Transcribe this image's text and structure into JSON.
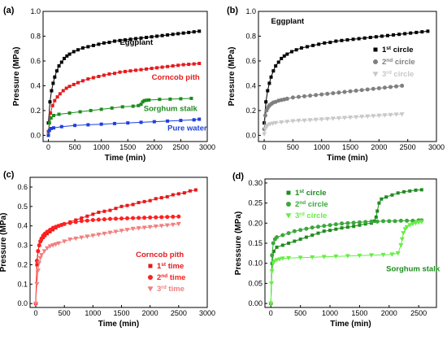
{
  "chart_data": [
    {
      "panel": "(a)",
      "type": "line",
      "xlabel": "Time (min)",
      "ylabel": "Pressure (MPa)",
      "xlim": [
        -100,
        3000
      ],
      "ylim": [
        -0.05,
        1.0
      ],
      "xticks": [
        0,
        500,
        1000,
        1500,
        2000,
        2500,
        3000
      ],
      "yticks": [
        0.0,
        0.2,
        0.4,
        0.6,
        0.8,
        1.0
      ],
      "grid": false,
      "legend": "none",
      "annotations": [
        {
          "text": "Eggplant",
          "x": 1350,
          "y": 0.73,
          "color": "#000000"
        },
        {
          "text": "Corncob pith",
          "x": 1950,
          "y": 0.45,
          "color": "#e41a1c"
        },
        {
          "text": "Sorghum stalk",
          "x": 1800,
          "y": 0.195,
          "color": "#1e8c1e"
        },
        {
          "text": "Pure water",
          "x": 2250,
          "y": 0.04,
          "color": "#1f3fe0"
        }
      ],
      "series": [
        {
          "name": "Eggplant",
          "color": "#000000",
          "marker": "square",
          "x": [
            0,
            30,
            60,
            90,
            120,
            160,
            200,
            250,
            300,
            350,
            400,
            480,
            560,
            650,
            750,
            850,
            950,
            1050,
            1150,
            1250,
            1350,
            1450,
            1550,
            1650,
            1750,
            1850,
            1950,
            2050,
            2150,
            2250,
            2350,
            2450,
            2550,
            2650,
            2750,
            2850
          ],
          "y": [
            0.1,
            0.27,
            0.36,
            0.42,
            0.47,
            0.52,
            0.56,
            0.59,
            0.62,
            0.64,
            0.655,
            0.675,
            0.69,
            0.705,
            0.715,
            0.725,
            0.735,
            0.745,
            0.75,
            0.76,
            0.765,
            0.77,
            0.775,
            0.78,
            0.785,
            0.79,
            0.795,
            0.8,
            0.805,
            0.81,
            0.815,
            0.82,
            0.825,
            0.83,
            0.835,
            0.84
          ]
        },
        {
          "name": "Corncob pith",
          "color": "#e41a1c",
          "marker": "square",
          "x": [
            0,
            40,
            80,
            120,
            170,
            220,
            280,
            340,
            400,
            480,
            560,
            650,
            750,
            850,
            950,
            1050,
            1150,
            1250,
            1350,
            1450,
            1550,
            1650,
            1750,
            1850,
            1950,
            2050,
            2150,
            2250,
            2350,
            2450,
            2550,
            2650,
            2750,
            2850
          ],
          "y": [
            0.03,
            0.18,
            0.24,
            0.28,
            0.31,
            0.335,
            0.36,
            0.38,
            0.395,
            0.41,
            0.425,
            0.44,
            0.455,
            0.465,
            0.475,
            0.485,
            0.495,
            0.5,
            0.51,
            0.515,
            0.52,
            0.525,
            0.53,
            0.535,
            0.54,
            0.545,
            0.55,
            0.555,
            0.56,
            0.565,
            0.57,
            0.573,
            0.576,
            0.58
          ]
        },
        {
          "name": "Sorghum stalk",
          "color": "#1e8c1e",
          "marker": "square",
          "x": [
            0,
            20,
            50,
            100,
            200,
            400,
            600,
            800,
            1000,
            1200,
            1400,
            1600,
            1700,
            1750,
            1780,
            1810,
            1850,
            1900,
            2100,
            2300,
            2500,
            2700
          ],
          "y": [
            0.0,
            0.1,
            0.14,
            0.16,
            0.17,
            0.18,
            0.19,
            0.2,
            0.21,
            0.22,
            0.23,
            0.235,
            0.24,
            0.25,
            0.27,
            0.28,
            0.283,
            0.285,
            0.29,
            0.292,
            0.295,
            0.298
          ]
        },
        {
          "name": "Pure water",
          "color": "#1f3fe0",
          "marker": "square",
          "x": [
            0,
            20,
            50,
            100,
            250,
            500,
            750,
            1000,
            1250,
            1500,
            1750,
            2000,
            2250,
            2500,
            2750,
            2850
          ],
          "y": [
            0.0,
            0.04,
            0.055,
            0.06,
            0.07,
            0.08,
            0.085,
            0.09,
            0.095,
            0.1,
            0.105,
            0.11,
            0.115,
            0.12,
            0.125,
            0.13
          ]
        }
      ]
    },
    {
      "panel": "(b)",
      "type": "line",
      "xlabel": "Time (min)",
      "ylabel": "Pressure (MPa)",
      "xlim": [
        -100,
        3000
      ],
      "ylim": [
        -0.05,
        1.0
      ],
      "xticks": [
        0,
        500,
        1000,
        1500,
        2000,
        2500,
        3000
      ],
      "yticks": [
        0.0,
        0.2,
        0.4,
        0.6,
        0.8,
        1.0
      ],
      "grid": false,
      "legend": "right",
      "annotations": [
        {
          "text": "Eggplant",
          "x": 120,
          "y": 0.9,
          "color": "#000000"
        }
      ],
      "series": [
        {
          "name": "1st circle",
          "color": "#000000",
          "marker": "square",
          "x": [
            0,
            30,
            60,
            90,
            120,
            160,
            200,
            250,
            300,
            350,
            400,
            480,
            560,
            650,
            750,
            850,
            950,
            1050,
            1150,
            1250,
            1350,
            1450,
            1550,
            1650,
            1750,
            1850,
            1950,
            2050,
            2150,
            2250,
            2350,
            2450,
            2550,
            2650,
            2750,
            2850
          ],
          "y": [
            0.1,
            0.27,
            0.36,
            0.42,
            0.47,
            0.52,
            0.56,
            0.59,
            0.62,
            0.64,
            0.655,
            0.675,
            0.69,
            0.705,
            0.715,
            0.725,
            0.735,
            0.745,
            0.75,
            0.76,
            0.765,
            0.77,
            0.775,
            0.78,
            0.785,
            0.79,
            0.795,
            0.8,
            0.805,
            0.81,
            0.815,
            0.82,
            0.825,
            0.83,
            0.835,
            0.84
          ]
        },
        {
          "name": "2nd circle",
          "color": "#808080",
          "marker": "circle",
          "x": [
            0,
            20,
            40,
            60,
            80,
            100,
            130,
            160,
            200,
            250,
            300,
            350,
            400,
            500,
            600,
            700,
            800,
            900,
            1000,
            1100,
            1200,
            1300,
            1400,
            1500,
            1600,
            1700,
            1800,
            1900,
            2000,
            2100,
            2200,
            2300,
            2400
          ],
          "y": [
            0.05,
            0.16,
            0.2,
            0.22,
            0.235,
            0.245,
            0.255,
            0.265,
            0.27,
            0.28,
            0.285,
            0.29,
            0.295,
            0.305,
            0.31,
            0.315,
            0.32,
            0.325,
            0.33,
            0.335,
            0.34,
            0.345,
            0.35,
            0.355,
            0.36,
            0.365,
            0.37,
            0.375,
            0.38,
            0.385,
            0.39,
            0.395,
            0.4
          ]
        },
        {
          "name": "3rd circle",
          "color": "#c8c8c8",
          "marker": "triangle-down",
          "x": [
            0,
            20,
            40,
            60,
            100,
            150,
            200,
            300,
            400,
            500,
            600,
            700,
            800,
            900,
            1000,
            1100,
            1200,
            1300,
            1400,
            1500,
            1600,
            1700,
            1800,
            1900,
            2000,
            2100,
            2200,
            2300,
            2400
          ],
          "y": [
            0.01,
            0.05,
            0.07,
            0.08,
            0.09,
            0.095,
            0.1,
            0.105,
            0.11,
            0.115,
            0.118,
            0.12,
            0.123,
            0.126,
            0.129,
            0.132,
            0.135,
            0.138,
            0.141,
            0.144,
            0.147,
            0.15,
            0.153,
            0.156,
            0.159,
            0.162,
            0.165,
            0.168,
            0.17
          ]
        }
      ]
    },
    {
      "panel": "(c)",
      "type": "line",
      "xlabel": "Time (min)",
      "ylabel": "Pressure (MPa)",
      "xlim": [
        -100,
        3000
      ],
      "ylim": [
        -0.02,
        0.65
      ],
      "xticks": [
        0,
        500,
        1000,
        1500,
        2000,
        2500,
        3000
      ],
      "yticks": [
        0.0,
        0.1,
        0.2,
        0.3,
        0.4,
        0.5,
        0.6
      ],
      "grid": false,
      "legend": "bottom-right",
      "annotations": [
        {
          "text": "Corncob pith",
          "x": 1750,
          "y": 0.24,
          "color": "#e41a1c"
        }
      ],
      "series": [
        {
          "name": "1st time",
          "color": "#e41a1c",
          "marker": "square",
          "x": [
            0,
            20,
            40,
            60,
            80,
            100,
            130,
            160,
            200,
            250,
            300,
            350,
            400,
            450,
            500,
            600,
            700,
            800,
            900,
            1000,
            1100,
            1200,
            1300,
            1400,
            1500,
            1600,
            1700,
            1800,
            1900,
            2000,
            2100,
            2200,
            2300,
            2400,
            2500,
            2600,
            2700,
            2800
          ],
          "y": [
            0.0,
            0.2,
            0.27,
            0.3,
            0.32,
            0.33,
            0.34,
            0.35,
            0.36,
            0.37,
            0.38,
            0.39,
            0.4,
            0.405,
            0.41,
            0.42,
            0.43,
            0.44,
            0.45,
            0.46,
            0.47,
            0.475,
            0.48,
            0.49,
            0.5,
            0.505,
            0.51,
            0.52,
            0.525,
            0.53,
            0.54,
            0.545,
            0.55,
            0.56,
            0.565,
            0.57,
            0.58,
            0.585
          ]
        },
        {
          "name": "2nd time",
          "color": "#ff2020",
          "marker": "circle",
          "x": [
            0,
            20,
            40,
            60,
            80,
            100,
            130,
            160,
            200,
            250,
            300,
            350,
            400,
            450,
            500,
            600,
            700,
            800,
            900,
            1000,
            1100,
            1200,
            1300,
            1400,
            1500,
            1600,
            1700,
            1800,
            1900,
            2000,
            2100,
            2200,
            2300,
            2400,
            2500
          ],
          "y": [
            0.0,
            0.22,
            0.27,
            0.3,
            0.32,
            0.335,
            0.35,
            0.36,
            0.37,
            0.38,
            0.39,
            0.395,
            0.4,
            0.405,
            0.41,
            0.415,
            0.42,
            0.425,
            0.427,
            0.43,
            0.432,
            0.434,
            0.436,
            0.437,
            0.438,
            0.439,
            0.44,
            0.441,
            0.442,
            0.443,
            0.444,
            0.445,
            0.446,
            0.447,
            0.448
          ]
        },
        {
          "name": "3rd time",
          "color": "#f08080",
          "marker": "triangle-down",
          "x": [
            0,
            20,
            40,
            60,
            80,
            100,
            150,
            200,
            250,
            300,
            350,
            400,
            500,
            600,
            700,
            800,
            900,
            1000,
            1100,
            1200,
            1300,
            1400,
            1500,
            1600,
            1700,
            1800,
            1900,
            2000,
            2100,
            2200,
            2300,
            2400,
            2500
          ],
          "y": [
            0.0,
            0.1,
            0.17,
            0.21,
            0.235,
            0.25,
            0.27,
            0.285,
            0.295,
            0.3,
            0.305,
            0.31,
            0.32,
            0.33,
            0.335,
            0.34,
            0.345,
            0.35,
            0.355,
            0.36,
            0.365,
            0.37,
            0.375,
            0.38,
            0.385,
            0.388,
            0.391,
            0.394,
            0.397,
            0.4,
            0.403,
            0.406,
            0.41
          ]
        }
      ]
    },
    {
      "panel": "(d)",
      "type": "line",
      "xlabel": "Time (min)",
      "ylabel": "Presssure (MPa)",
      "xlim": [
        -100,
        2800
      ],
      "ylim": [
        -0.01,
        0.31
      ],
      "xticks": [
        0,
        500,
        1000,
        1500,
        2000,
        2500
      ],
      "yticks": [
        0.0,
        0.05,
        0.1,
        0.15,
        0.2,
        0.25,
        0.3
      ],
      "grid": false,
      "legend": "top-left",
      "annotations": [
        {
          "text": "Sorghum stalk",
          "x": 1950,
          "y": 0.08,
          "color": "#1e8c1e"
        }
      ],
      "series": [
        {
          "name": "1st circle",
          "color": "#1e8c1e",
          "marker": "square",
          "x": [
            0,
            20,
            50,
            100,
            200,
            300,
            400,
            500,
            600,
            700,
            800,
            900,
            1000,
            1100,
            1200,
            1300,
            1400,
            1500,
            1600,
            1700,
            1750,
            1780,
            1800,
            1830,
            1870,
            1950,
            2050,
            2150,
            2250,
            2350,
            2450,
            2550
          ],
          "y": [
            0.0,
            0.1,
            0.13,
            0.14,
            0.145,
            0.15,
            0.155,
            0.16,
            0.165,
            0.17,
            0.175,
            0.18,
            0.182,
            0.185,
            0.188,
            0.19,
            0.192,
            0.195,
            0.198,
            0.2,
            0.205,
            0.215,
            0.23,
            0.25,
            0.26,
            0.265,
            0.27,
            0.275,
            0.278,
            0.28,
            0.282,
            0.283
          ]
        },
        {
          "name": "2nd circle",
          "color": "#3aa83a",
          "marker": "circle",
          "x": [
            0,
            20,
            40,
            70,
            100,
            200,
            300,
            400,
            500,
            600,
            700,
            800,
            900,
            1000,
            1100,
            1200,
            1300,
            1400,
            1500,
            1600,
            1700,
            1800,
            1900,
            2000,
            2100,
            2200,
            2300,
            2400,
            2500,
            2550
          ],
          "y": [
            0.0,
            0.12,
            0.15,
            0.16,
            0.165,
            0.17,
            0.175,
            0.18,
            0.183,
            0.186,
            0.189,
            0.191,
            0.193,
            0.195,
            0.197,
            0.199,
            0.2,
            0.201,
            0.202,
            0.203,
            0.204,
            0.204,
            0.205,
            0.205,
            0.205,
            0.206,
            0.206,
            0.206,
            0.207,
            0.207
          ]
        },
        {
          "name": "3rd circle",
          "color": "#66ee44",
          "marker": "triangle-down",
          "x": [
            0,
            10,
            20,
            40,
            60,
            100,
            150,
            200,
            300,
            500,
            700,
            900,
            1100,
            1300,
            1500,
            1700,
            1900,
            2050,
            2150,
            2200,
            2220,
            2240,
            2270,
            2300,
            2350,
            2400,
            2450,
            2500,
            2550
          ],
          "y": [
            0.0,
            0.05,
            0.08,
            0.1,
            0.105,
            0.108,
            0.11,
            0.112,
            0.113,
            0.114,
            0.115,
            0.116,
            0.117,
            0.118,
            0.119,
            0.12,
            0.121,
            0.122,
            0.125,
            0.145,
            0.16,
            0.175,
            0.185,
            0.19,
            0.195,
            0.198,
            0.2,
            0.202,
            0.203
          ]
        }
      ]
    }
  ],
  "figure_title": "",
  "panel_labels": [
    "(a)",
    "(b)",
    "(c)",
    "(d)"
  ]
}
